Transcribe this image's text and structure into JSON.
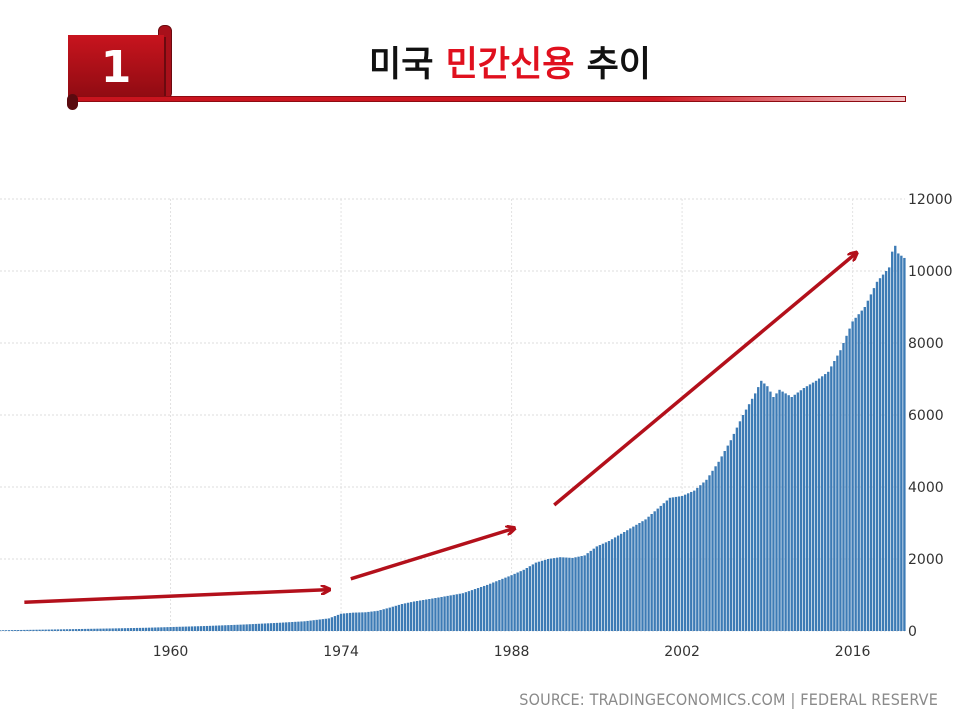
{
  "slide": {
    "number": "1",
    "title_part1": "미국 ",
    "title_highlight": "민간신용",
    "title_part2": " 추이"
  },
  "source_text": "SOURCE: TRADINGECONOMICS.COM | FEDERAL RESERVE",
  "colors": {
    "accent_red": "#c8141e",
    "title_highlight": "#e0101e",
    "bar_blue": "#3d7bb5",
    "arrow_red": "#b3101b"
  },
  "chart_data": {
    "type": "area",
    "title": "",
    "xlabel": "",
    "ylabel": "",
    "xlim": [
      1946,
      2020.3
    ],
    "ylim": [
      0,
      12000
    ],
    "x_ticks": [
      "1960",
      "1974",
      "1988",
      "2002",
      "2016"
    ],
    "y_ticks": [
      "0",
      "2000",
      "4000",
      "6000",
      "8000",
      "10000",
      "12000"
    ],
    "grid": true,
    "series": [
      {
        "values": [
          [
            1946.0,
            20
          ],
          [
            1950,
            40
          ],
          [
            1955,
            70
          ],
          [
            1958,
            90
          ],
          [
            1960,
            110
          ],
          [
            1963,
            140
          ],
          [
            1966,
            180
          ],
          [
            1969,
            230
          ],
          [
            1971,
            270
          ],
          [
            1973,
            350
          ],
          [
            1974,
            480
          ],
          [
            1975,
            510
          ],
          [
            1976,
            520
          ],
          [
            1977,
            560
          ],
          [
            1978,
            650
          ],
          [
            1979,
            750
          ],
          [
            1980,
            820
          ],
          [
            1982,
            930
          ],
          [
            1984,
            1050
          ],
          [
            1986,
            1280
          ],
          [
            1988,
            1550
          ],
          [
            1989,
            1700
          ],
          [
            1990,
            1900
          ],
          [
            1991,
            2000
          ],
          [
            1992,
            2050
          ],
          [
            1993,
            2030
          ],
          [
            1994,
            2100
          ],
          [
            1995,
            2350
          ],
          [
            1996,
            2500
          ],
          [
            1997,
            2700
          ],
          [
            1998,
            2900
          ],
          [
            1999,
            3100
          ],
          [
            2000,
            3400
          ],
          [
            2001,
            3700
          ],
          [
            2002,
            3750
          ],
          [
            2003,
            3900
          ],
          [
            2004,
            4200
          ],
          [
            2005,
            4700
          ],
          [
            2006,
            5300
          ],
          [
            2007,
            6000
          ],
          [
            2008,
            6600
          ],
          [
            2008.5,
            6950
          ],
          [
            2009,
            6800
          ],
          [
            2009.5,
            6500
          ],
          [
            2010,
            6700
          ],
          [
            2011,
            6500
          ],
          [
            2012,
            6750
          ],
          [
            2013,
            6950
          ],
          [
            2014,
            7200
          ],
          [
            2015,
            7800
          ],
          [
            2016,
            8600
          ],
          [
            2017,
            9000
          ],
          [
            2018,
            9700
          ],
          [
            2019,
            10100
          ],
          [
            2019.4,
            10800
          ],
          [
            2019.7,
            10500
          ],
          [
            2020.3,
            10350
          ]
        ]
      }
    ]
  }
}
